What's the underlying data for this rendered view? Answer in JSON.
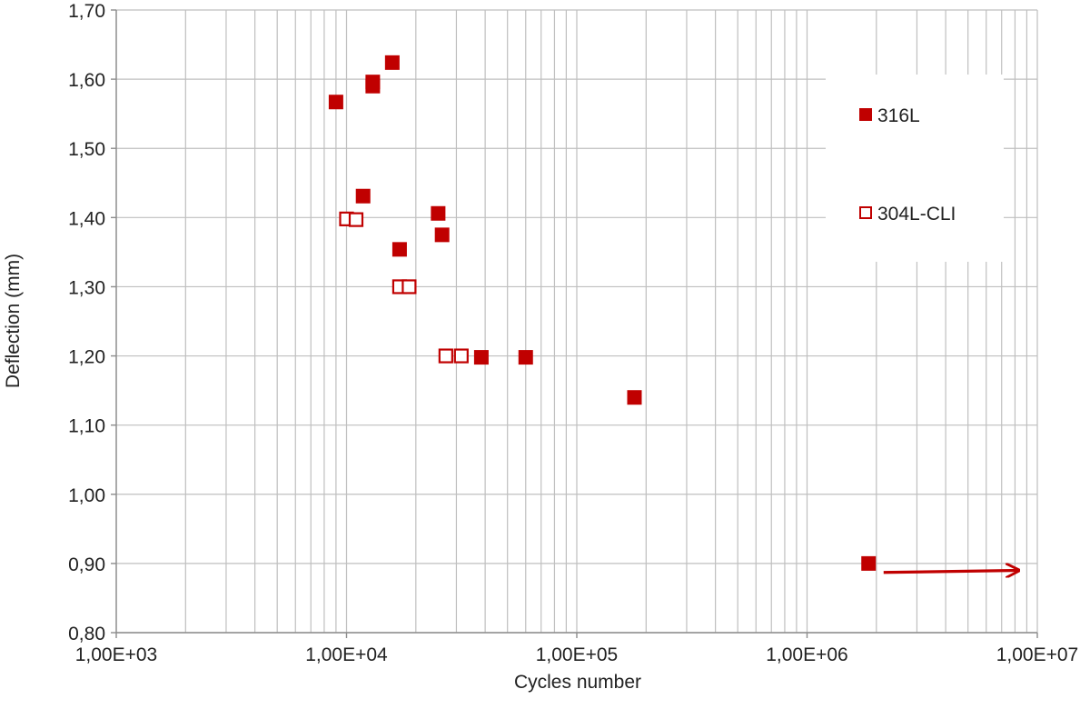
{
  "chart_data": {
    "type": "scatter",
    "xlabel": "Cycles number",
    "ylabel": "Deflection (mm)",
    "x_scale": "log",
    "xlim": [
      1000,
      10000000
    ],
    "ylim": [
      0.8,
      1.7
    ],
    "x_ticks": [
      {
        "value": 1000,
        "label": "1,00E+03"
      },
      {
        "value": 10000,
        "label": "1,00E+04"
      },
      {
        "value": 100000,
        "label": "1,00E+05"
      },
      {
        "value": 1000000,
        "label": "1,00E+06"
      },
      {
        "value": 10000000,
        "label": "1,00E+07"
      }
    ],
    "y_ticks": [
      {
        "value": 0.8,
        "label": "0,80"
      },
      {
        "value": 0.9,
        "label": "0,90"
      },
      {
        "value": 1.0,
        "label": "1,00"
      },
      {
        "value": 1.1,
        "label": "1,10"
      },
      {
        "value": 1.2,
        "label": "1,20"
      },
      {
        "value": 1.3,
        "label": "1,30"
      },
      {
        "value": 1.4,
        "label": "1,40"
      },
      {
        "value": 1.5,
        "label": "1,50"
      },
      {
        "value": 1.6,
        "label": "1,60"
      },
      {
        "value": 1.7,
        "label": "1,70"
      }
    ],
    "grid": true,
    "minor_grid": true,
    "legend_position": "right",
    "series": [
      {
        "name": "316L",
        "marker": "filled-square",
        "color": "#c00000",
        "points": [
          {
            "x": 9000,
            "y": 1.567
          },
          {
            "x": 13000,
            "y": 1.59
          },
          {
            "x": 13000,
            "y": 1.596
          },
          {
            "x": 15800,
            "y": 1.624
          },
          {
            "x": 11800,
            "y": 1.431
          },
          {
            "x": 25000,
            "y": 1.406
          },
          {
            "x": 26000,
            "y": 1.375
          },
          {
            "x": 17000,
            "y": 1.354
          },
          {
            "x": 38500,
            "y": 1.198
          },
          {
            "x": 60000,
            "y": 1.198
          },
          {
            "x": 178000,
            "y": 1.14
          },
          {
            "x": 1850000,
            "y": 0.9
          }
        ]
      },
      {
        "name": "304L-CLI",
        "marker": "open-square",
        "color": "#c00000",
        "points": [
          {
            "x": 10000,
            "y": 1.398
          },
          {
            "x": 11000,
            "y": 1.397
          },
          {
            "x": 17000,
            "y": 1.3
          },
          {
            "x": 18700,
            "y": 1.3
          },
          {
            "x": 27000,
            "y": 1.2
          },
          {
            "x": 31500,
            "y": 1.2
          }
        ]
      }
    ],
    "annotations": [
      {
        "type": "arrow",
        "color": "#c00000",
        "from": {
          "x": 2150000,
          "y": 0.887
        },
        "to": {
          "x": 8300000,
          "y": 0.89
        }
      }
    ]
  }
}
